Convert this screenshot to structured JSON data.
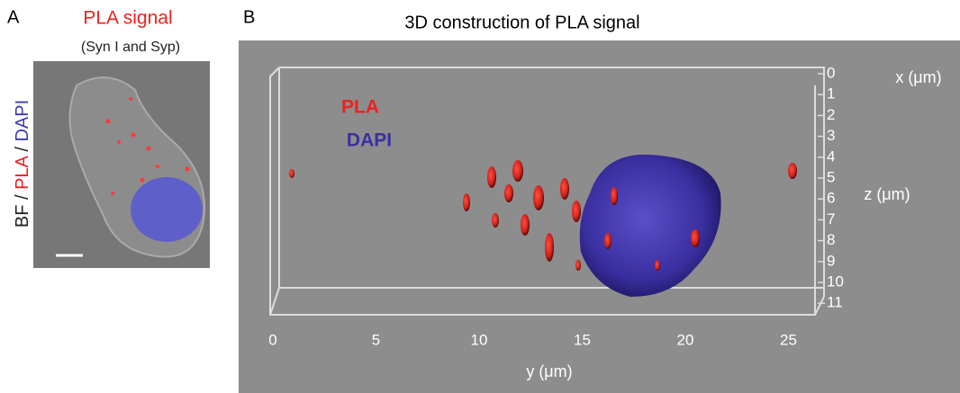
{
  "panel_a": {
    "label": "A",
    "title": "PLA signal",
    "subtitle": "(Syn I and Syp)",
    "side_label": [
      "BF",
      " / ",
      "PLA",
      " / ",
      "DAPI"
    ]
  },
  "panel_b": {
    "label": "B",
    "title": "3D construction of PLA signal",
    "legend": [
      "PLA",
      "DAPI"
    ],
    "y_ticks": [
      0,
      5,
      10,
      15,
      20,
      25
    ],
    "y_label": "y (μm)",
    "z_ticks": [
      0,
      1,
      2,
      3,
      4,
      5,
      6,
      7,
      8,
      9,
      10,
      11
    ],
    "z_label": "z (μm)",
    "x_label": "x (μm)"
  }
}
